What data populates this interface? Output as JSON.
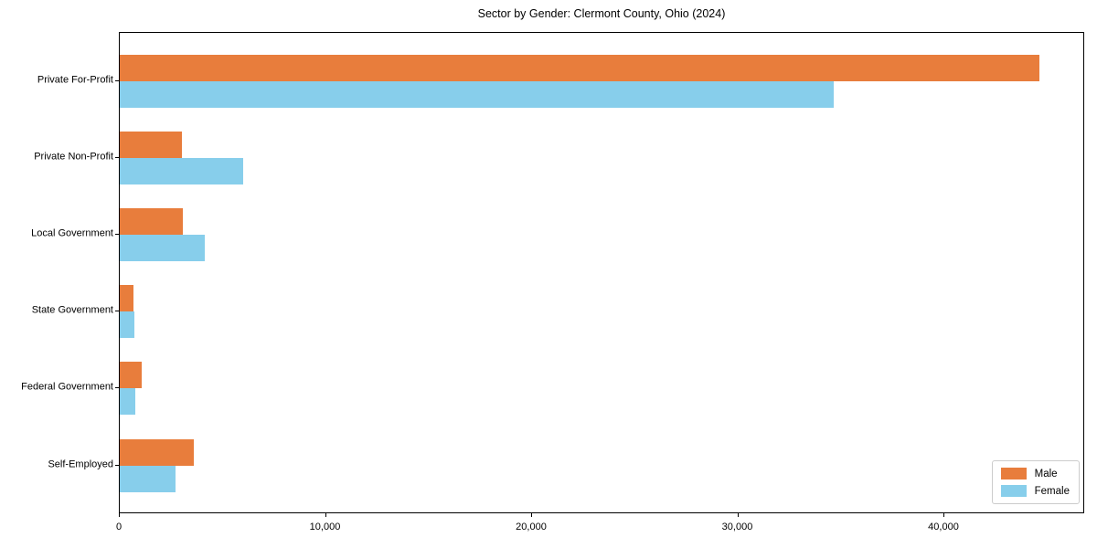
{
  "chart_data": {
    "type": "bar",
    "orientation": "horizontal",
    "title": "Sector by Gender: Clermont County, Ohio (2024)",
    "categories": [
      "Private For-Profit",
      "Private Non-Profit",
      "Local Government",
      "State Government",
      "Federal Government",
      "Self-Employed"
    ],
    "series": [
      {
        "name": "Male",
        "color": "#E87D3C",
        "values": [
          44600,
          3000,
          3050,
          680,
          1080,
          3580
        ]
      },
      {
        "name": "Female",
        "color": "#87CEEB",
        "values": [
          34650,
          6000,
          4100,
          720,
          740,
          2700
        ]
      }
    ],
    "xlabel": "",
    "ylabel": "",
    "xlim": [
      0,
      46830
    ],
    "xticks": [
      0,
      10000,
      20000,
      30000,
      40000
    ],
    "xtick_labels": [
      "0",
      "10,000",
      "20,000",
      "30,000",
      "40,000"
    ],
    "grid": false,
    "legend_position": "lower right",
    "plot_border_color": "#000000",
    "background_color": "#ffffff"
  }
}
